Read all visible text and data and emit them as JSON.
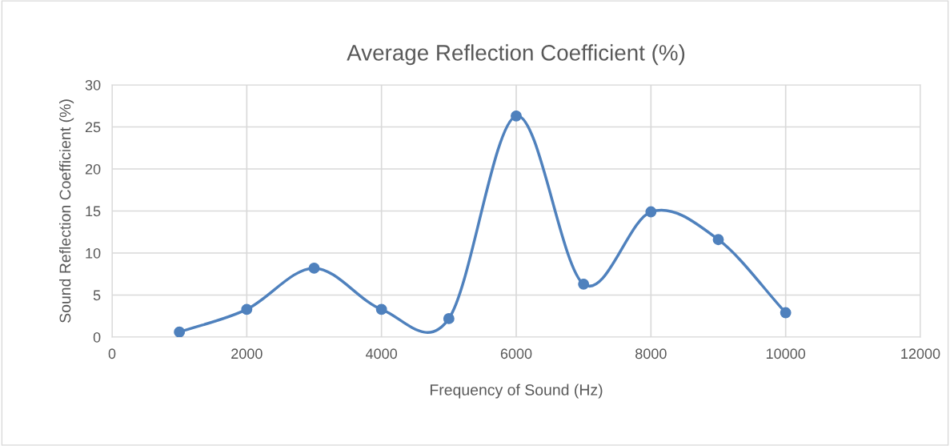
{
  "chart_data": {
    "type": "line",
    "title": "Average Reflection Coefficient (%)",
    "xlabel": "Frequency of Sound (Hz)",
    "ylabel": "Sound Reflection Coefficient (%)",
    "x": [
      1000,
      2000,
      3000,
      4000,
      5000,
      6000,
      7000,
      8000,
      9000,
      10000
    ],
    "series": [
      {
        "color": "#4f81bd",
        "values": [
          0.6,
          3.3,
          8.2,
          3.3,
          2.2,
          26.3,
          6.3,
          14.9,
          11.6,
          2.9
        ]
      }
    ],
    "xlim": [
      0,
      12000
    ],
    "xticks": [
      0,
      2000,
      4000,
      6000,
      8000,
      10000,
      12000
    ],
    "ylim": [
      0,
      30
    ],
    "yticks": [
      0,
      5,
      10,
      15,
      20,
      25,
      30
    ],
    "grid": true,
    "marker": "circle",
    "line_style": "solid"
  }
}
